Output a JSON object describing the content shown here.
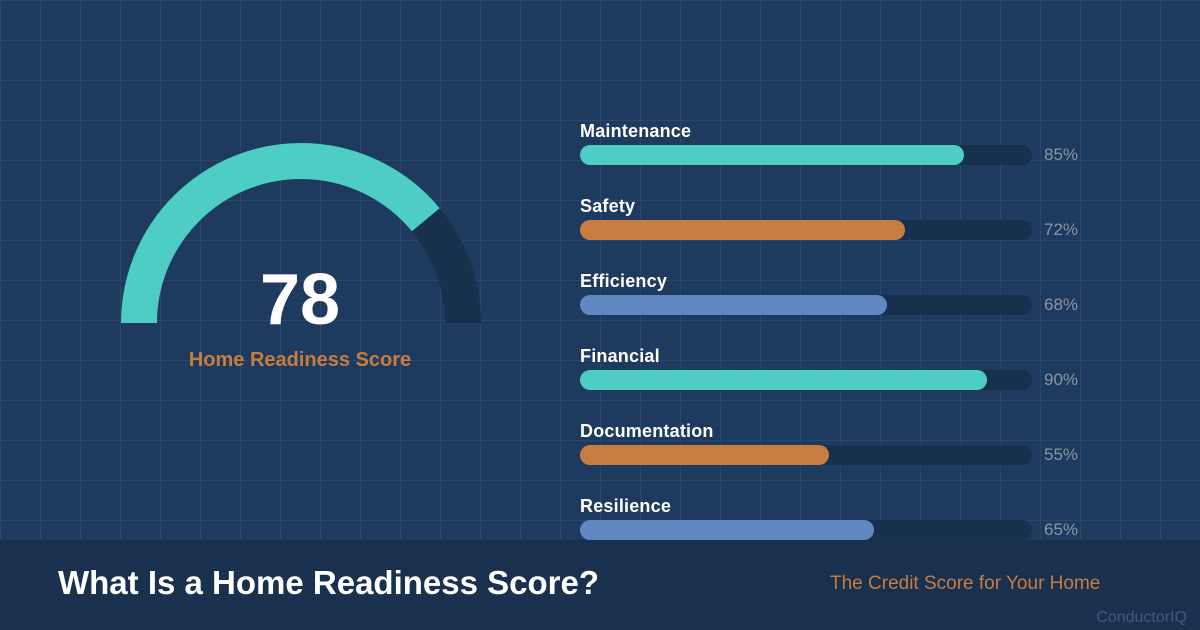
{
  "colors": {
    "background": "#1E3A5E",
    "grid_line": "#2A476C",
    "teal": "#4ECDC4",
    "orange": "#C87C41",
    "blue": "#6089C4",
    "track": "#16304E",
    "footer_bg": "#1A304F",
    "pct_text": "#8C96A4",
    "brand_text": "#41597B",
    "white": "#FFFFFF"
  },
  "gauge": {
    "value": "78",
    "value_number": 78,
    "max": 100,
    "label": "Home Readiness Score"
  },
  "bars": [
    {
      "label": "Maintenance",
      "value": 85,
      "pct": "85%",
      "color": "#4ECDC4"
    },
    {
      "label": "Safety",
      "value": 72,
      "pct": "72%",
      "color": "#C87C41"
    },
    {
      "label": "Efficiency",
      "value": 68,
      "pct": "68%",
      "color": "#6089C4"
    },
    {
      "label": "Financial",
      "value": 90,
      "pct": "90%",
      "color": "#4ECDC4"
    },
    {
      "label": "Documentation",
      "value": 55,
      "pct": "55%",
      "color": "#C87C41"
    },
    {
      "label": "Resilience",
      "value": 65,
      "pct": "65%",
      "color": "#6089C4"
    }
  ],
  "footer": {
    "title": "What Is a Home Readiness Score?",
    "tagline": "The Credit Score for Your Home",
    "brand": "ConductorIQ"
  },
  "chart_data": [
    {
      "type": "gauge",
      "title": "Home Readiness Score",
      "value": 78,
      "min": 0,
      "max": 100,
      "shape": "semicircle",
      "fill_color": "#4ECDC4",
      "track_color": "#16304E"
    },
    {
      "type": "bar",
      "orientation": "horizontal",
      "categories": [
        "Maintenance",
        "Safety",
        "Efficiency",
        "Financial",
        "Documentation",
        "Resilience"
      ],
      "values": [
        85,
        72,
        68,
        90,
        55,
        65
      ],
      "value_labels": [
        "85%",
        "72%",
        "68%",
        "90%",
        "55%",
        "65%"
      ],
      "xlim": [
        0,
        100
      ],
      "grid": false,
      "bar_colors": [
        "#4ECDC4",
        "#C87C41",
        "#6089C4",
        "#4ECDC4",
        "#C87C41",
        "#6089C4"
      ],
      "value_label_position": "right"
    }
  ]
}
